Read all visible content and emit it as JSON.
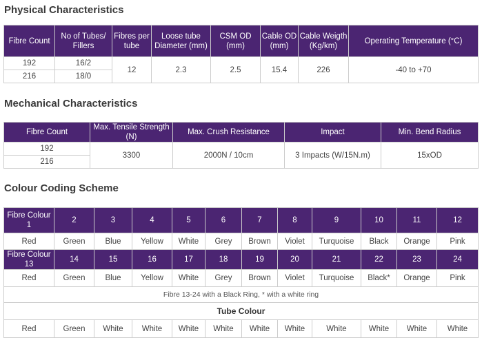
{
  "physical": {
    "title": "Physical Characteristics",
    "headers": [
      "Fibre Count",
      "No of Tubes/ Fillers",
      "Fibres per tube",
      "Loose tube Diameter (mm)",
      "CSM OD (mm)",
      "Cable OD (mm)",
      "Cable Weigth (Kg/km)",
      "Operating Temperature (°C)"
    ],
    "rows": [
      {
        "fibre_count": "192",
        "tubes": "16/2"
      },
      {
        "fibre_count": "216",
        "tubes": "18/0"
      }
    ],
    "shared": {
      "fibres_per_tube": "12",
      "loose_tube_diameter": "2.3",
      "csm_od": "2.5",
      "cable_od": "15.4",
      "cable_weight": "226",
      "operating_temperature": "-40 to +70"
    }
  },
  "mechanical": {
    "title": "Mechanical Characteristics",
    "headers": [
      "Fibre Count",
      "Max. Tensile Strength (N)",
      "Max. Crush Resistance",
      "Impact",
      "Min. Bend Radius"
    ],
    "rows": [
      "192",
      "216"
    ],
    "shared": {
      "tensile": "3300",
      "crush": "2000N / 10cm",
      "impact": "3 Impacts (W/15N.m)",
      "bend_radius": "15xOD"
    }
  },
  "colour": {
    "title": "Colour Coding Scheme",
    "row1_label": "Fibre Colour 1",
    "row1_numbers": [
      "2",
      "3",
      "4",
      "5",
      "6",
      "7",
      "8",
      "9",
      "10",
      "11",
      "12"
    ],
    "row1_colours": [
      "Red",
      "Green",
      "Blue",
      "Yellow",
      "White",
      "Grey",
      "Brown",
      "Violet",
      "Turquoise",
      "Black",
      "Orange",
      "Pink"
    ],
    "row2_label": "Fibre Colour 13",
    "row2_numbers": [
      "14",
      "15",
      "16",
      "17",
      "18",
      "19",
      "20",
      "21",
      "22",
      "23",
      "24"
    ],
    "row2_colours": [
      "Red",
      "Green",
      "Blue",
      "Yellow",
      "White",
      "Grey",
      "Brown",
      "Violet",
      "Turquoise",
      "Black*",
      "Orange",
      "Pink"
    ],
    "note": "Fibre 13-24 with a Black Ring, * with a white ring",
    "tube_title": "Tube Colour",
    "tube_colours": [
      "Red",
      "Green",
      "White",
      "White",
      "White",
      "White",
      "White",
      "White",
      "White",
      "White",
      "White",
      "White"
    ]
  }
}
